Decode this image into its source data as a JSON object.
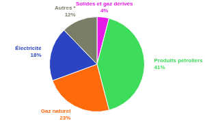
{
  "chart_data": {
    "type": "pie",
    "categories": [
      "Solides et gaz dérivés",
      "Produits pétroliers",
      "Gaz naturel",
      "Électricité",
      "Autres *"
    ],
    "values": [
      4,
      41,
      23,
      18,
      12
    ],
    "value_labels": [
      "4%",
      "41%",
      "23%",
      "18%",
      "12%"
    ],
    "colors": [
      "#e619e6",
      "#3ddc5a",
      "#ff6a0d",
      "#2b44c2",
      "#7a7d68"
    ],
    "data_labels": true
  }
}
